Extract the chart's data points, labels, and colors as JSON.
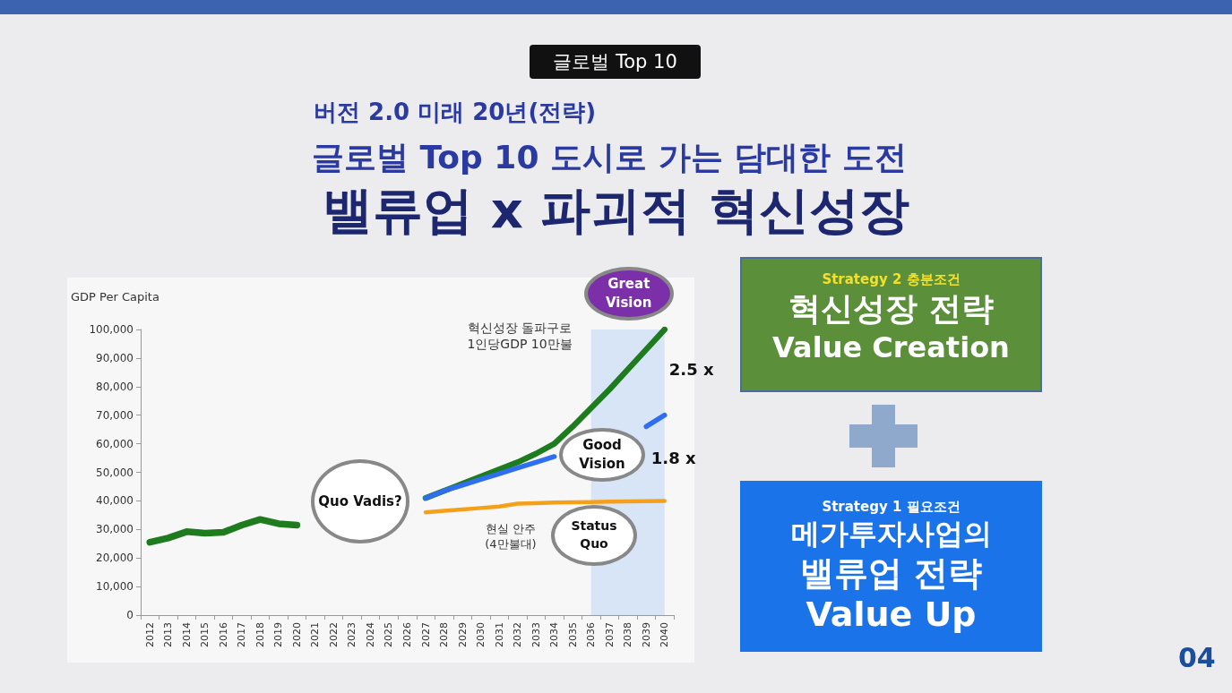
{
  "chart_data": {
    "type": "line",
    "title": "밸류업 x 파괴적 혁신성장",
    "subtitle": "버전 2.0 미래 20년(전략)",
    "ylabel": "GDP Per Capita",
    "categories": [
      "2012",
      "2013",
      "2014",
      "2015",
      "2016",
      "2017",
      "2018",
      "2019",
      "2020",
      "2021",
      "2022",
      "2023",
      "2024",
      "2025",
      "2026",
      "2027",
      "2028",
      "2029",
      "2030",
      "2031",
      "2032",
      "2033",
      "2034",
      "2035",
      "2036",
      "2037",
      "2038",
      "2039",
      "2040"
    ],
    "series": [
      {
        "color": "#1e7b1e",
        "values": [
          25500,
          27000,
          29200,
          28700,
          29000,
          31500,
          33500,
          32000,
          31500,
          null,
          null,
          null,
          null,
          null,
          null,
          null,
          null,
          null,
          null,
          null,
          null,
          null,
          null,
          null,
          null,
          null,
          null,
          null,
          null
        ]
      },
      {
        "color": "#1e7b1e",
        "values": [
          null,
          null,
          null,
          null,
          null,
          null,
          null,
          null,
          null,
          null,
          null,
          null,
          null,
          null,
          null,
          41000,
          43500,
          46000,
          48500,
          51000,
          53500,
          56500,
          60000,
          66000,
          72500,
          79000,
          86000,
          93000,
          100000
        ]
      },
      {
        "color": "#2f6fef",
        "values": [
          null,
          null,
          null,
          null,
          null,
          null,
          null,
          null,
          null,
          null,
          null,
          null,
          null,
          null,
          null,
          41000,
          43500,
          45500,
          47500,
          49500,
          51500,
          53500,
          55500,
          null,
          null,
          null,
          null,
          66000,
          70000
        ]
      },
      {
        "color": "#f5a01a",
        "values": [
          null,
          null,
          null,
          null,
          null,
          null,
          null,
          null,
          null,
          null,
          null,
          null,
          null,
          null,
          null,
          36000,
          36500,
          37000,
          37500,
          38000,
          39000,
          39200,
          39400,
          39500,
          39600,
          39700,
          39800,
          39900,
          40000
        ]
      }
    ],
    "ylim": [
      0,
      100000
    ],
    "yticks": [
      0,
      {
        "value": 10000,
        "label": "10,000"
      },
      {
        "value": 20000,
        "label": "20,000"
      },
      {
        "value": 30000,
        "label": "30,000"
      },
      {
        "value": 40000,
        "label": "40,000"
      },
      {
        "value": 50000,
        "label": "50,000"
      },
      {
        "value": 60000,
        "label": "60,000"
      },
      {
        "value": 70000,
        "label": "70,000"
      },
      {
        "value": 80000,
        "label": "80,000"
      },
      {
        "value": 90000,
        "label": "90,000"
      },
      {
        "value": 100000,
        "label": "100,000"
      }
    ],
    "bands": [
      {
        "axis": "x",
        "from": "2036",
        "to": "2040",
        "color": "#cfe0f5"
      }
    ],
    "annotations": [
      "글로벌 Top 10",
      "글로벌 Top 10 도시로 가는 담대한 도전",
      "Strategy 2 충분조건",
      "혁신성장 전략",
      "Value Creation",
      "Strategy 1 필요조건",
      "메가투자사업의",
      "밸류업 전략",
      "Value Up",
      "04",
      "Quo Vadis?",
      "Status Quo",
      "혁신성장 돌파구로\n1인당GDP 10만불",
      "현실 안주\n(4만불대)",
      "Good Vision",
      {
        "text": "Great Vision",
        "x": "2040",
        "y": 100000
      },
      {
        "text": "2.5 x",
        "x": "2040",
        "y": 86000
      },
      {
        "text": "1.8 x",
        "x": "2040",
        "y": 55000
      }
    ]
  }
}
